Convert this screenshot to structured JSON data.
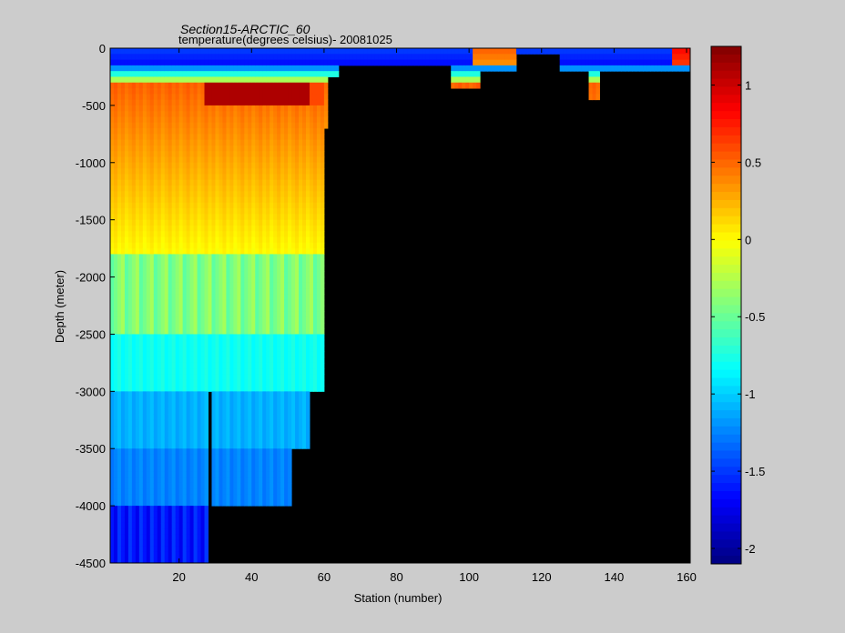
{
  "chart_data": {
    "type": "heatmap",
    "title": "Section15-ARCTIC_60",
    "subtitle": "temperature(degrees  celsius)- 20081025",
    "xlabel": "Station (number)",
    "ylabel": "Depth (meter)",
    "xlim": [
      1,
      161
    ],
    "ylim": [
      -4500,
      0
    ],
    "xticks": [
      20,
      40,
      60,
      80,
      100,
      120,
      140,
      160
    ],
    "xtick_labels": [
      "20",
      "40",
      "60",
      "80",
      "100",
      "120",
      "140",
      "160"
    ],
    "yticks": [
      0,
      -500,
      -1000,
      -1500,
      -2000,
      -2500,
      -3000,
      -3500,
      -4000,
      -4500
    ],
    "ytick_labels": [
      "0",
      "-500",
      "-1000",
      "-1500",
      "-2000",
      "-2500",
      "-3000",
      "-3500",
      "-4000",
      "-4500"
    ],
    "colorbar": {
      "range": [
        -2.1,
        1.25
      ],
      "ticks": [
        1,
        0.5,
        0,
        -0.5,
        -1,
        -1.5,
        -2
      ],
      "tick_labels": [
        "1",
        "0.5",
        "0",
        "-0.5",
        "-1",
        "-1.5",
        "-2"
      ],
      "colormap": "jet",
      "placement": "right"
    },
    "no_data_color": "#000000",
    "description_values": {
      "surface_layer_temp": -1.7,
      "atlantic_layer_core_temp": 1.1,
      "atlantic_layer_depth": [
        -300,
        -500
      ],
      "deep_water_temp": -0.9
    },
    "grid": false
  }
}
